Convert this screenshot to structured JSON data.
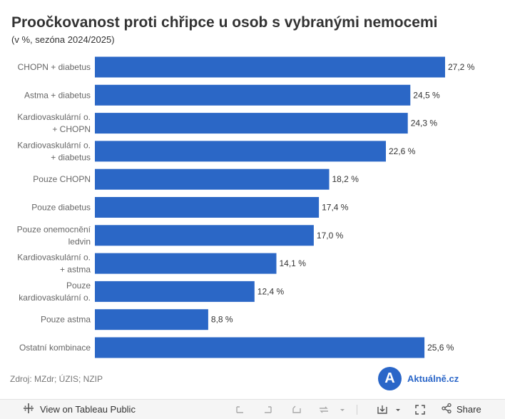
{
  "chart_data": {
    "type": "bar",
    "orientation": "horizontal",
    "title": "Proočkovanost proti chřipce u osob s vybranými nemocemi",
    "subtitle": "(v %, sezóna 2024/2025)",
    "categories": [
      [
        "CHOPN + diabetus"
      ],
      [
        "Astma + diabetus"
      ],
      [
        "Kardiovaskulární o.",
        "+ CHOPN"
      ],
      [
        "Kardiovaskulární o.",
        "+ diabetus"
      ],
      [
        "Pouze CHOPN"
      ],
      [
        "Pouze diabetus"
      ],
      [
        "Pouze onemocnění",
        "ledvin"
      ],
      [
        "Kardiovaskulární o.",
        "+ astma"
      ],
      [
        "Pouze",
        "kardiovaskulární o."
      ],
      [
        "Pouze astma"
      ],
      [
        "Ostatní kombinace"
      ]
    ],
    "values": [
      27.2,
      24.5,
      24.3,
      22.6,
      18.2,
      17.4,
      17.0,
      14.1,
      12.4,
      8.8,
      25.6
    ],
    "value_labels": [
      "27,2 %",
      "24,5 %",
      "24,3 %",
      "22,6 %",
      "18,2 %",
      "17,4 %",
      "17,0 %",
      "14,1 %",
      "12,4 %",
      "8,8 %",
      "25,6 %"
    ],
    "xlim": [
      0,
      27.2
    ],
    "bar_color": "#2b67c6",
    "grid": false
  },
  "source": "Zdroj: MZdr; ÚZIS; NZIP",
  "brand": {
    "logo_letter": "A",
    "name": "Aktuálně.cz",
    "color": "#2a66c8"
  },
  "toolbar": {
    "view_label": "View on Tableau Public",
    "share_label": "Share"
  }
}
